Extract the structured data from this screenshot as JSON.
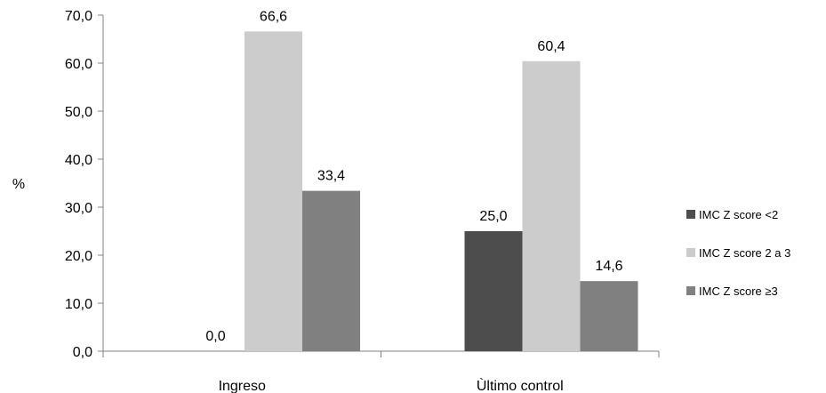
{
  "chart_data": {
    "type": "bar",
    "categories": [
      "Ingreso",
      "Ùltimo control"
    ],
    "series": [
      {
        "name": "IMC Z score <2",
        "values": [
          0.0,
          25.0
        ],
        "labels": [
          "0,0",
          "25,0"
        ],
        "color": "#4d4d4d"
      },
      {
        "name": "IMC Z score 2 a 3",
        "values": [
          66.6,
          60.4
        ],
        "labels": [
          "66,6",
          "60,4"
        ],
        "color": "#cccccc"
      },
      {
        "name": "IMC Z score ≥3",
        "values": [
          33.4,
          14.6
        ],
        "labels": [
          "33,4",
          "14,6"
        ],
        "color": "#808080"
      }
    ],
    "ylabel": "%",
    "ylim": [
      0,
      70
    ],
    "yticks": [
      0,
      10,
      20,
      30,
      40,
      50,
      60,
      70
    ],
    "ytick_labels": [
      "0,0",
      "10,0",
      "20,0",
      "30,0",
      "40,0",
      "50,0",
      "60,0",
      "70,0"
    ],
    "grid": false,
    "legend_position": "right"
  }
}
